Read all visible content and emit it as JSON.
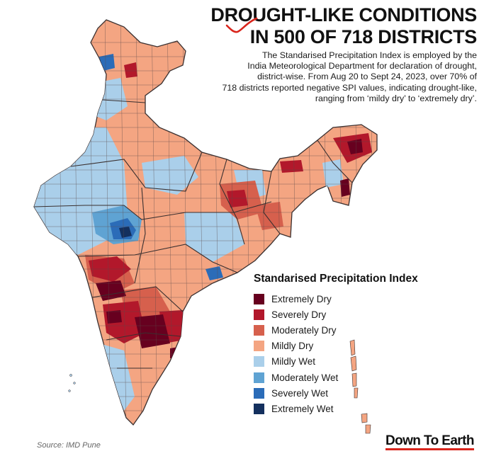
{
  "title": {
    "line1": "DROUGHT-LIKE CONDITIONS",
    "line2": "IN 500 OF 718 DISTRICTS"
  },
  "description": [
    "The Standarised Precipitation Index is employed by the",
    "India Meteorological Department for declaration of drought,",
    "district-wise. From Aug 20 to Sept 24, 2023, over 70% of",
    "718 districts reported negative SPI values, indicating drought-like,",
    "ranging from ‘mildy dry’ to ‘extremely dry’."
  ],
  "legend": {
    "title": "Standarised Precipitation Index",
    "items": [
      {
        "label": "Extremely Dry",
        "color": "#67001f"
      },
      {
        "label": "Severely Dry",
        "color": "#b2182b"
      },
      {
        "label": "Moderately Dry",
        "color": "#d6604d"
      },
      {
        "label": "Mildly Dry",
        "color": "#f4a582"
      },
      {
        "label": "Mildly Wet",
        "color": "#aacfea"
      },
      {
        "label": "Moderately Wet",
        "color": "#5fa3d3"
      },
      {
        "label": "Severely Wet",
        "color": "#2b6cb8"
      },
      {
        "label": "Extremely Wet",
        "color": "#14305e"
      }
    ]
  },
  "source": "Source:  IMD Pune",
  "brand": "Down To Earth",
  "colors": {
    "district_border": "#5b4b4b",
    "state_border": "#3a3030",
    "accent_red": "#d9251c"
  }
}
